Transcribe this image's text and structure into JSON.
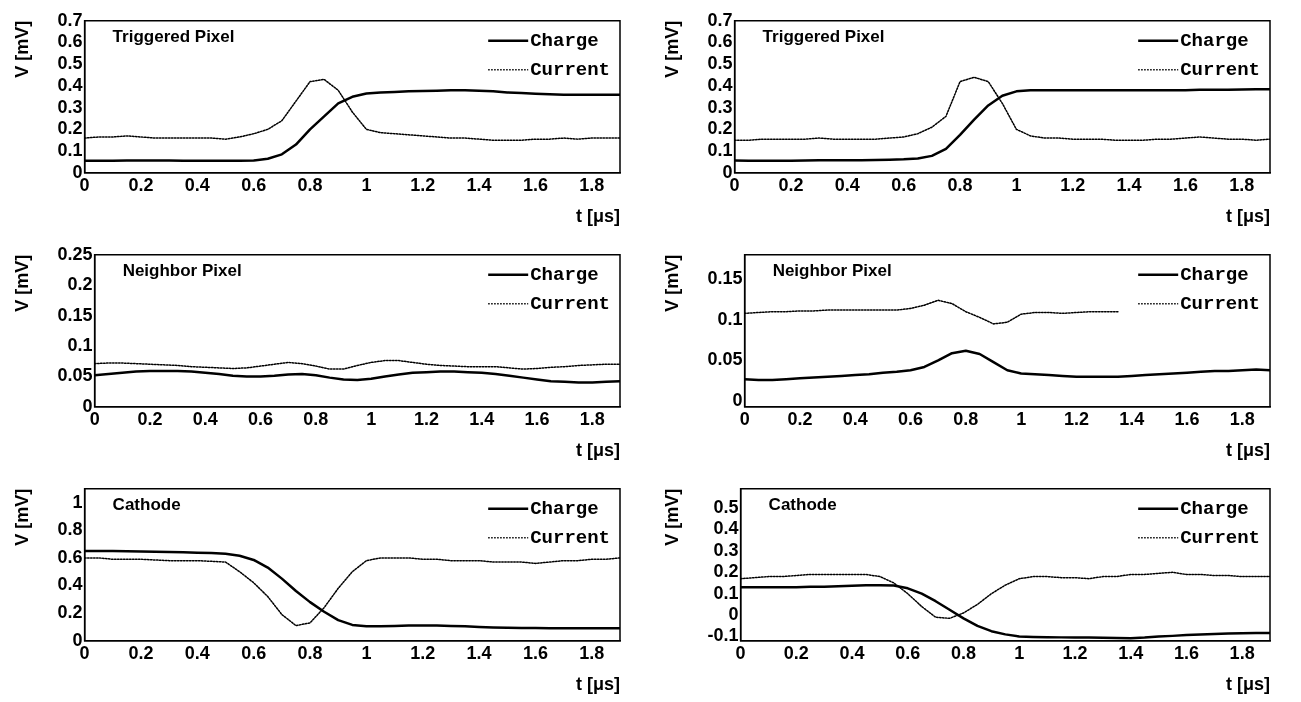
{
  "chart_data": [
    {
      "type": "line",
      "title": "Triggered Pixel",
      "xlabel": "t [μs]",
      "ylabel": "V [mV]",
      "legend": "top right",
      "marker": "none",
      "grid": false,
      "x": [
        0,
        0.05,
        0.1,
        0.15,
        0.2,
        0.25,
        0.3,
        0.35,
        0.4,
        0.45,
        0.5,
        0.55,
        0.6,
        0.65,
        0.7,
        0.75,
        0.8,
        0.85,
        0.9,
        0.95,
        1,
        1.05,
        1.1,
        1.15,
        1.2,
        1.25,
        1.3,
        1.35,
        1.4,
        1.45,
        1.5,
        1.55,
        1.6,
        1.65,
        1.7,
        1.75,
        1.8,
        1.85,
        1.9
      ],
      "xlim": [
        0,
        1.9
      ],
      "xticks": [
        0,
        0.2,
        0.4,
        0.6,
        0.8,
        1,
        1.2,
        1.4,
        1.6,
        1.8
      ],
      "ylim": [
        0,
        0.7
      ],
      "yticks": [
        0,
        0.1,
        0.2,
        0.3,
        0.4,
        0.5,
        0.6,
        0.7
      ],
      "series": [
        {
          "name": "Charge",
          "color": "#000000",
          "line_style": "solid",
          "values": [
            0.055,
            0.055,
            0.056,
            0.057,
            0.057,
            0.057,
            0.057,
            0.056,
            0.056,
            0.055,
            0.055,
            0.055,
            0.057,
            0.065,
            0.085,
            0.13,
            0.2,
            0.26,
            0.32,
            0.35,
            0.365,
            0.37,
            0.372,
            0.375,
            0.377,
            0.378,
            0.38,
            0.38,
            0.378,
            0.375,
            0.37,
            0.367,
            0.364,
            0.362,
            0.36,
            0.36,
            0.36,
            0.36,
            0.36
          ]
        },
        {
          "name": "Current",
          "color": "#000000",
          "line_style": "dotted",
          "values": [
            0.16,
            0.165,
            0.165,
            0.17,
            0.165,
            0.16,
            0.16,
            0.16,
            0.16,
            0.16,
            0.155,
            0.165,
            0.18,
            0.2,
            0.24,
            0.33,
            0.42,
            0.43,
            0.38,
            0.28,
            0.2,
            0.185,
            0.18,
            0.175,
            0.17,
            0.165,
            0.16,
            0.16,
            0.155,
            0.15,
            0.15,
            0.15,
            0.155,
            0.155,
            0.16,
            0.155,
            0.16,
            0.16,
            0.16
          ]
        }
      ]
    },
    {
      "type": "line",
      "title": "Triggered Pixel",
      "xlabel": "t [μs]",
      "ylabel": "V [mV]",
      "legend": "top right",
      "marker": "none",
      "grid": false,
      "x": [
        0,
        0.05,
        0.1,
        0.15,
        0.2,
        0.25,
        0.3,
        0.35,
        0.4,
        0.45,
        0.5,
        0.55,
        0.6,
        0.65,
        0.7,
        0.75,
        0.8,
        0.85,
        0.9,
        0.95,
        1,
        1.05,
        1.1,
        1.15,
        1.2,
        1.25,
        1.3,
        1.35,
        1.4,
        1.45,
        1.5,
        1.55,
        1.6,
        1.65,
        1.7,
        1.75,
        1.8,
        1.85,
        1.9
      ],
      "xlim": [
        0,
        1.9
      ],
      "xticks": [
        0,
        0.2,
        0.4,
        0.6,
        0.8,
        1,
        1.2,
        1.4,
        1.6,
        1.8
      ],
      "ylim": [
        0,
        0.7
      ],
      "yticks": [
        0,
        0.1,
        0.2,
        0.3,
        0.4,
        0.5,
        0.6,
        0.7
      ],
      "series": [
        {
          "name": "Charge",
          "color": "#000000",
          "line_style": "solid",
          "values": [
            0.057,
            0.056,
            0.055,
            0.055,
            0.056,
            0.057,
            0.058,
            0.058,
            0.058,
            0.058,
            0.059,
            0.06,
            0.062,
            0.066,
            0.078,
            0.11,
            0.175,
            0.245,
            0.31,
            0.355,
            0.375,
            0.38,
            0.38,
            0.38,
            0.38,
            0.38,
            0.38,
            0.38,
            0.38,
            0.38,
            0.38,
            0.38,
            0.38,
            0.382,
            0.382,
            0.383,
            0.384,
            0.385,
            0.385
          ]
        },
        {
          "name": "Current",
          "color": "#000000",
          "line_style": "dotted",
          "values": [
            0.15,
            0.15,
            0.155,
            0.155,
            0.155,
            0.155,
            0.16,
            0.155,
            0.155,
            0.155,
            0.155,
            0.16,
            0.165,
            0.18,
            0.21,
            0.26,
            0.42,
            0.44,
            0.42,
            0.32,
            0.2,
            0.17,
            0.16,
            0.16,
            0.155,
            0.155,
            0.155,
            0.15,
            0.15,
            0.15,
            0.155,
            0.155,
            0.16,
            0.165,
            0.16,
            0.155,
            0.155,
            0.15,
            0.155
          ]
        }
      ]
    },
    {
      "type": "line",
      "title": "Neighbor Pixel",
      "xlabel": "t [μs]",
      "ylabel": "V [mV]",
      "legend": "top right",
      "marker": "none",
      "grid": false,
      "x": [
        0,
        0.05,
        0.1,
        0.15,
        0.2,
        0.25,
        0.3,
        0.35,
        0.4,
        0.45,
        0.5,
        0.55,
        0.6,
        0.65,
        0.7,
        0.75,
        0.8,
        0.85,
        0.9,
        0.95,
        1,
        1.05,
        1.1,
        1.15,
        1.2,
        1.25,
        1.3,
        1.35,
        1.4,
        1.45,
        1.5,
        1.55,
        1.6,
        1.65,
        1.7,
        1.75,
        1.8,
        1.85,
        1.9
      ],
      "xlim": [
        0,
        1.9
      ],
      "xticks": [
        0,
        0.2,
        0.4,
        0.6,
        0.8,
        1,
        1.2,
        1.4,
        1.6,
        1.8
      ],
      "ylim": [
        0,
        0.25
      ],
      "yticks": [
        0,
        0.05,
        0.1,
        0.15,
        0.2,
        0.25
      ],
      "series": [
        {
          "name": "Charge",
          "color": "#000000",
          "line_style": "solid",
          "values": [
            0.052,
            0.054,
            0.056,
            0.058,
            0.059,
            0.059,
            0.059,
            0.058,
            0.056,
            0.054,
            0.051,
            0.05,
            0.05,
            0.051,
            0.053,
            0.054,
            0.052,
            0.048,
            0.045,
            0.044,
            0.046,
            0.05,
            0.053,
            0.056,
            0.057,
            0.058,
            0.058,
            0.057,
            0.056,
            0.054,
            0.051,
            0.048,
            0.045,
            0.042,
            0.041,
            0.04,
            0.04,
            0.041,
            0.042
          ]
        },
        {
          "name": "Current",
          "color": "#000000",
          "line_style": "dotted",
          "values": [
            0.071,
            0.072,
            0.072,
            0.071,
            0.07,
            0.069,
            0.068,
            0.066,
            0.065,
            0.064,
            0.063,
            0.064,
            0.067,
            0.07,
            0.073,
            0.071,
            0.067,
            0.062,
            0.062,
            0.068,
            0.073,
            0.076,
            0.076,
            0.073,
            0.07,
            0.068,
            0.067,
            0.066,
            0.066,
            0.066,
            0.064,
            0.062,
            0.063,
            0.065,
            0.066,
            0.068,
            0.069,
            0.07,
            0.07
          ]
        }
      ]
    },
    {
      "type": "line",
      "title": "Neighbor Pixel",
      "xlabel": "t [μs]",
      "ylabel": "V [mV]",
      "legend": "top right",
      "marker": "none",
      "grid": false,
      "x": [
        0,
        0.05,
        0.1,
        0.15,
        0.2,
        0.25,
        0.3,
        0.35,
        0.4,
        0.45,
        0.5,
        0.55,
        0.6,
        0.65,
        0.7,
        0.75,
        0.8,
        0.85,
        0.9,
        0.95,
        1,
        1.05,
        1.1,
        1.15,
        1.2,
        1.25,
        1.3,
        1.35,
        1.4,
        1.45,
        1.5,
        1.55,
        1.6,
        1.65,
        1.7,
        1.75,
        1.8,
        1.85,
        1.9
      ],
      "xlim": [
        0,
        1.9
      ],
      "xticks": [
        0,
        0.2,
        0.4,
        0.6,
        0.8,
        1,
        1.2,
        1.4,
        1.6,
        1.8
      ],
      "ylim": [
        -0.007,
        0.18
      ],
      "yticks": [
        0,
        0.05,
        0.1,
        0.15
      ],
      "series": [
        {
          "name": "Charge",
          "color": "#000000",
          "line_style": "solid",
          "values": [
            0.027,
            0.026,
            0.026,
            0.027,
            0.028,
            0.029,
            0.03,
            0.031,
            0.032,
            0.033,
            0.035,
            0.036,
            0.038,
            0.042,
            0.05,
            0.059,
            0.062,
            0.058,
            0.048,
            0.038,
            0.034,
            0.033,
            0.032,
            0.031,
            0.03,
            0.03,
            0.03,
            0.03,
            0.031,
            0.032,
            0.033,
            0.034,
            0.035,
            0.036,
            0.037,
            0.037,
            0.038,
            0.039,
            0.038
          ]
        },
        {
          "name": "Current",
          "color": "#000000",
          "line_style": "dotted",
          "values": [
            0.108,
            0.109,
            0.11,
            0.11,
            0.111,
            0.111,
            0.112,
            0.112,
            0.112,
            0.112,
            0.112,
            0.112,
            0.114,
            0.118,
            0.124,
            0.12,
            0.11,
            0.103,
            0.095,
            0.097,
            0.107,
            0.109,
            0.109,
            0.108,
            0.109,
            0.11,
            0.11,
            0.11,
            null,
            null,
            null,
            null,
            null,
            null,
            null,
            null,
            null,
            null,
            null
          ]
        }
      ]
    },
    {
      "type": "line",
      "title": "Cathode",
      "xlabel": "t [μs]",
      "ylabel": "V [mV]",
      "legend": "top right",
      "marker": "none",
      "grid": false,
      "x": [
        0,
        0.05,
        0.1,
        0.15,
        0.2,
        0.25,
        0.3,
        0.35,
        0.4,
        0.45,
        0.5,
        0.55,
        0.6,
        0.65,
        0.7,
        0.75,
        0.8,
        0.85,
        0.9,
        0.95,
        1,
        1.05,
        1.1,
        1.15,
        1.2,
        1.25,
        1.3,
        1.35,
        1.4,
        1.45,
        1.5,
        1.55,
        1.6,
        1.65,
        1.7,
        1.75,
        1.8,
        1.85,
        1.9
      ],
      "xlim": [
        0,
        1.9
      ],
      "xticks": [
        0,
        0.2,
        0.4,
        0.6,
        0.8,
        1,
        1.2,
        1.4,
        1.6,
        1.8
      ],
      "ylim": [
        0,
        1.1
      ],
      "yticks": [
        0,
        0.2,
        0.4,
        0.6,
        0.8,
        1
      ],
      "series": [
        {
          "name": "Charge",
          "color": "#000000",
          "line_style": "solid",
          "values": [
            0.65,
            0.65,
            0.65,
            0.648,
            0.646,
            0.645,
            0.643,
            0.641,
            0.638,
            0.635,
            0.63,
            0.615,
            0.585,
            0.53,
            0.45,
            0.36,
            0.28,
            0.21,
            0.15,
            0.115,
            0.105,
            0.105,
            0.108,
            0.11,
            0.11,
            0.11,
            0.108,
            0.105,
            0.1,
            0.097,
            0.095,
            0.093,
            0.092,
            0.09,
            0.09,
            0.09,
            0.09,
            0.09,
            0.09
          ]
        },
        {
          "name": "Current",
          "color": "#000000",
          "line_style": "dotted",
          "values": [
            0.6,
            0.6,
            0.59,
            0.59,
            0.59,
            0.585,
            0.58,
            0.58,
            0.58,
            0.575,
            0.57,
            0.5,
            0.42,
            0.32,
            0.19,
            0.11,
            0.13,
            0.24,
            0.38,
            0.5,
            0.58,
            0.6,
            0.6,
            0.6,
            0.59,
            0.59,
            0.58,
            0.58,
            0.58,
            0.57,
            0.57,
            0.57,
            0.56,
            0.57,
            0.58,
            0.58,
            0.59,
            0.59,
            0.6
          ]
        }
      ]
    },
    {
      "type": "line",
      "title": "Cathode",
      "xlabel": "t [μs]",
      "ylabel": "V [mV]",
      "legend": "top right",
      "marker": "none",
      "grid": false,
      "x": [
        0,
        0.05,
        0.1,
        0.15,
        0.2,
        0.25,
        0.3,
        0.35,
        0.4,
        0.45,
        0.5,
        0.55,
        0.6,
        0.65,
        0.7,
        0.75,
        0.8,
        0.85,
        0.9,
        0.95,
        1,
        1.05,
        1.1,
        1.15,
        1.2,
        1.25,
        1.3,
        1.35,
        1.4,
        1.45,
        1.5,
        1.55,
        1.6,
        1.65,
        1.7,
        1.75,
        1.8,
        1.85,
        1.9
      ],
      "xlim": [
        0,
        1.9
      ],
      "xticks": [
        0,
        0.2,
        0.4,
        0.6,
        0.8,
        1,
        1.2,
        1.4,
        1.6,
        1.8
      ],
      "ylim": [
        -0.12,
        0.59
      ],
      "yticks": [
        -0.1,
        0,
        0.1,
        0.2,
        0.3,
        0.4,
        0.5
      ],
      "series": [
        {
          "name": "Charge",
          "color": "#000000",
          "line_style": "solid",
          "values": [
            0.13,
            0.13,
            0.13,
            0.13,
            0.13,
            0.132,
            0.133,
            0.135,
            0.137,
            0.139,
            0.14,
            0.138,
            0.125,
            0.1,
            0.065,
            0.025,
            -0.015,
            -0.05,
            -0.075,
            -0.09,
            -0.1,
            -0.102,
            -0.103,
            -0.104,
            -0.105,
            -0.105,
            -0.106,
            -0.107,
            -0.108,
            -0.105,
            -0.1,
            -0.097,
            -0.093,
            -0.09,
            -0.088,
            -0.086,
            -0.085,
            -0.084,
            -0.084
          ]
        },
        {
          "name": "Current",
          "color": "#000000",
          "line_style": "dotted",
          "values": [
            0.17,
            0.175,
            0.18,
            0.18,
            0.185,
            0.19,
            0.19,
            0.19,
            0.19,
            0.19,
            0.18,
            0.15,
            0.1,
            0.04,
            -0.01,
            -0.015,
            0.01,
            0.05,
            0.1,
            0.14,
            0.17,
            0.18,
            0.18,
            0.175,
            0.175,
            0.17,
            0.18,
            0.18,
            0.19,
            0.19,
            0.195,
            0.2,
            0.19,
            0.19,
            0.185,
            0.185,
            0.18,
            0.18,
            0.18
          ]
        }
      ]
    }
  ]
}
